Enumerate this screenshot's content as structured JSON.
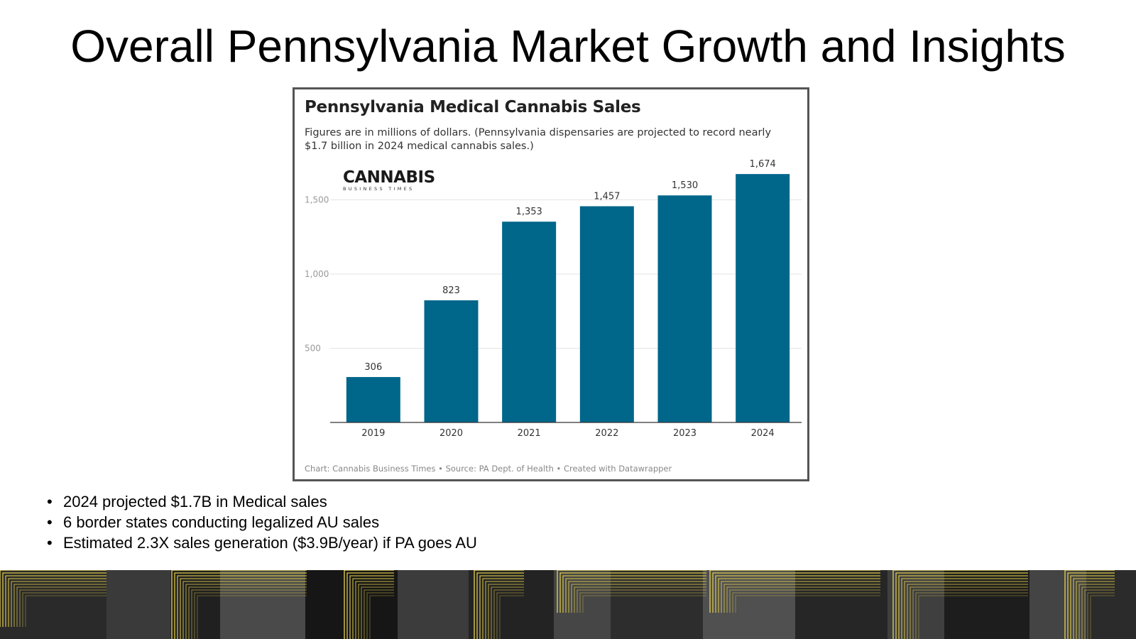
{
  "slide": {
    "title": "Overall Pennsylvania Market Growth and Insights",
    "bullets": [
      "2024 projected $1.7B in Medical sales",
      "6 border states conducting legalized AU sales",
      "Estimated 2.3X sales generation ($3.9B/year) if PA goes AU"
    ]
  },
  "logo": {
    "main": "CANNABIS",
    "sub": "BUSINESS TIMES"
  },
  "chart_data": {
    "type": "bar",
    "title": "Pennsylvania Medical Cannabis Sales",
    "subtitle": "Figures are in millions of dollars. (Pennsylvania dispensaries are projected to record nearly $1.7 billion in 2024 medical cannabis sales.)",
    "categories": [
      "2019",
      "2020",
      "2021",
      "2022",
      "2023",
      "2024"
    ],
    "values": [
      306,
      823,
      1353,
      1457,
      1530,
      1674
    ],
    "value_labels": [
      "306",
      "823",
      "1,353",
      "1,457",
      "1,530",
      "1,674"
    ],
    "yticks": [
      500,
      1000,
      1500
    ],
    "ytick_labels": [
      "500",
      "1,000",
      "1,500"
    ],
    "ylim": [
      0,
      1700
    ],
    "grid": true,
    "bar_color": "#00668a",
    "source": "Chart: Cannabis Business Times • Source: PA Dept. of Health • Created with Datawrapper"
  }
}
